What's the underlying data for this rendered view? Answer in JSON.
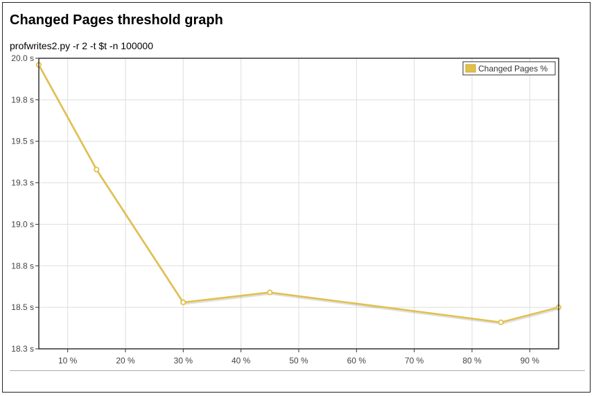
{
  "page": {
    "title": "Changed Pages threshold graph",
    "subtitle": "profwrites2.py -r 2 -t $t -n 100000"
  },
  "chart_data": {
    "type": "line",
    "title": "Changed Pages threshold graph",
    "subtitle": "profwrites2.py -r 2 -t $t -n 100000",
    "xlabel": "",
    "ylabel": "",
    "x_unit": "%",
    "y_unit": "s",
    "xlim": [
      5,
      95
    ],
    "ylim": [
      18.25,
      20.0
    ],
    "x_ticks": [
      10,
      20,
      30,
      40,
      50,
      60,
      70,
      80,
      90
    ],
    "x_tick_labels": [
      "10 %",
      "20 %",
      "30 %",
      "40 %",
      "50 %",
      "60 %",
      "70 %",
      "80 %",
      "90 %"
    ],
    "y_ticks": [
      18.25,
      18.5,
      18.75,
      19.0,
      19.25,
      19.5,
      19.75,
      20.0
    ],
    "y_tick_labels": [
      "18.3 s",
      "18.5 s",
      "18.8 s",
      "19.0 s",
      "19.3 s",
      "19.5 s",
      "19.8 s",
      "20.0 s"
    ],
    "grid": true,
    "legend": "top-right",
    "series": [
      {
        "name": "Changed Pages %",
        "color": "#e2c04a",
        "x": [
          5,
          15,
          30,
          45,
          85,
          95
        ],
        "y": [
          19.96,
          19.33,
          18.53,
          18.59,
          18.41,
          18.5
        ]
      }
    ]
  }
}
